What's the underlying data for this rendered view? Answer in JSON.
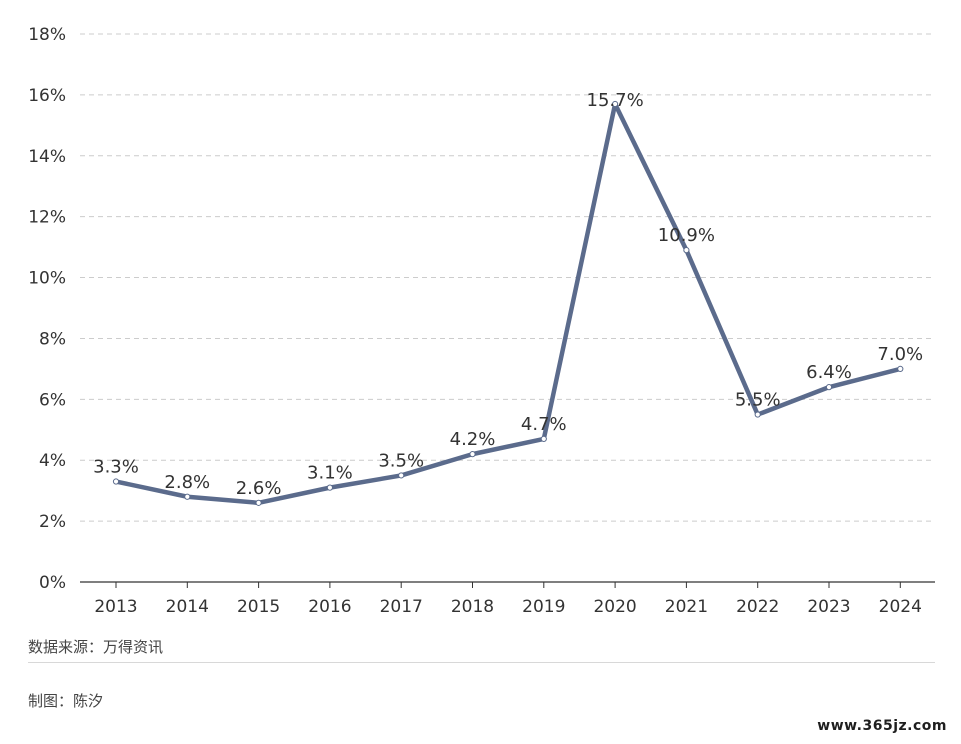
{
  "chart_data": {
    "type": "line",
    "categories": [
      "2013",
      "2014",
      "2015",
      "2016",
      "2017",
      "2018",
      "2019",
      "2020",
      "2021",
      "2022",
      "2023",
      "2024"
    ],
    "series": [
      {
        "values": [
          3.3,
          2.8,
          2.6,
          3.1,
          3.5,
          4.2,
          4.7,
          15.7,
          10.9,
          5.5,
          6.4,
          7.0
        ],
        "labels": [
          "3.3%",
          "2.8%",
          "2.6%",
          "3.1%",
          "3.5%",
          "4.2%",
          "4.7%",
          "15.7%",
          "10.9%",
          "5.5%",
          "6.4%",
          "7.0%"
        ],
        "color": "#5b6b8c"
      }
    ],
    "ylim": [
      0,
      18
    ],
    "yticks": [
      0,
      2,
      4,
      6,
      8,
      10,
      12,
      14,
      16,
      18
    ],
    "ytick_labels": [
      "0%",
      "2%",
      "4%",
      "6%",
      "8%",
      "10%",
      "12%",
      "14%",
      "16%",
      "18%"
    ],
    "grid": true,
    "title": "",
    "xlabel": "",
    "ylabel": ""
  },
  "footer": {
    "source": "数据来源：万得资讯",
    "author": "制图：陈汐"
  },
  "watermark": "www.365jz.com",
  "colors": {
    "line": "#5b6b8c",
    "grid": "#cccccc",
    "axis": "#333333"
  }
}
